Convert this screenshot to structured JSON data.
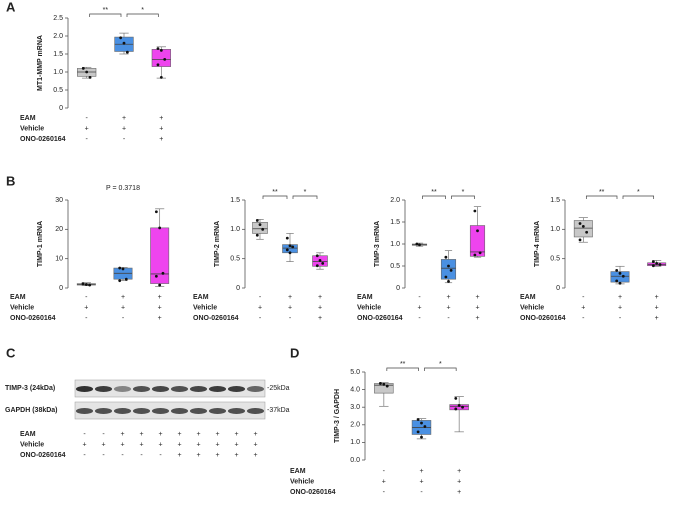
{
  "chart_data": [
    {
      "type": "box",
      "panel": "A",
      "y_label": "MT1-MMP mRNA",
      "ylim": [
        0,
        2.5
      ],
      "yticks": [
        0,
        0.5,
        {
          "value": 1,
          "label": "1.0"
        },
        1.5,
        {
          "value": 2,
          "label": "2.0"
        },
        2.5
      ],
      "brackets": [
        "**",
        "*"
      ],
      "groups": [
        {
          "color": "#c8c8c8",
          "min": 0.83,
          "q1": 0.88,
          "median": 1.0,
          "q3": 1.1,
          "max": 1.13,
          "points": [
            1.1,
            1.0,
            0.85
          ]
        },
        {
          "color": "#4a90e2",
          "min": 1.5,
          "q1": 1.57,
          "median": 1.77,
          "q3": 1.97,
          "max": 2.08,
          "points": [
            1.95,
            1.8,
            1.55
          ]
        },
        {
          "color": "#ee44ee",
          "min": 0.83,
          "q1": 1.15,
          "median": 1.35,
          "q3": 1.63,
          "max": 1.7,
          "points": [
            1.65,
            1.6,
            1.35,
            1.2,
            0.85
          ]
        }
      ],
      "conditions": [
        {
          "label": "EAM",
          "signs": [
            "-",
            "+",
            "+"
          ]
        },
        {
          "label": "Vehicle",
          "signs": [
            "+",
            "+",
            "+"
          ]
        },
        {
          "label": "ONO-0260164",
          "signs": [
            "-",
            "-",
            "+"
          ]
        }
      ]
    },
    {
      "type": "box",
      "panel": "B",
      "y_label": "TIMP-1 mRNA",
      "ylim": [
        0,
        30
      ],
      "yticks": [
        0,
        10,
        20,
        30
      ],
      "annotation": "P = 0.3718",
      "groups": [
        {
          "color": "#c8c8c8",
          "min": 0.8,
          "q1": 1.0,
          "median": 1.2,
          "q3": 1.5,
          "max": 1.8,
          "points": [
            1.5,
            1.2,
            1.0
          ]
        },
        {
          "color": "#4a90e2",
          "min": 2.5,
          "q1": 3,
          "median": 5,
          "q3": 6.8,
          "max": 7,
          "points": [
            6.8,
            6.5,
            3,
            2.5
          ]
        },
        {
          "color": "#ee44ee",
          "min": 0.5,
          "q1": 1.5,
          "median": 4.8,
          "q3": 20.5,
          "max": 27,
          "points": [
            26,
            20.5,
            5,
            4,
            1
          ]
        }
      ],
      "conditions": [
        {
          "label": "EAM",
          "signs": [
            "-",
            "+",
            "+"
          ]
        },
        {
          "label": "Vehicle",
          "signs": [
            "+",
            "+",
            "+"
          ]
        },
        {
          "label": "ONO-0260164",
          "signs": [
            "-",
            "-",
            "+"
          ]
        }
      ]
    },
    {
      "type": "box",
      "y_label": "TIMP-2 mRNA",
      "ylim": [
        0,
        1.5
      ],
      "yticks": [
        0,
        0.5,
        {
          "value": 1,
          "label": "1.0"
        },
        1.5
      ],
      "brackets": [
        "**",
        "*"
      ],
      "groups": [
        {
          "color": "#c8c8c8",
          "min": 0.83,
          "q1": 0.93,
          "median": 1.01,
          "q3": 1.12,
          "max": 1.17,
          "points": [
            1.15,
            1.08,
            1.0,
            0.9
          ]
        },
        {
          "color": "#4a90e2",
          "min": 0.45,
          "q1": 0.6,
          "median": 0.68,
          "q3": 0.74,
          "max": 0.93,
          "points": [
            0.85,
            0.72,
            0.7,
            0.65,
            0.6
          ]
        },
        {
          "color": "#ee44ee",
          "min": 0.32,
          "q1": 0.37,
          "median": 0.45,
          "q3": 0.55,
          "max": 0.6,
          "points": [
            0.55,
            0.47,
            0.42,
            0.38
          ]
        }
      ],
      "conditions": [
        {
          "label": "EAM",
          "signs": [
            "-",
            "+",
            "+"
          ]
        },
        {
          "label": "Vehicle",
          "signs": [
            "+",
            "+",
            "+"
          ]
        },
        {
          "label": "ONO-0260164",
          "signs": [
            "-",
            "-",
            "+"
          ]
        }
      ]
    },
    {
      "type": "box",
      "y_label": "TIMP-3 mRNA",
      "ylim": [
        0,
        2
      ],
      "yticks": [
        0,
        0.5,
        {
          "value": 1,
          "label": "1.0"
        },
        1.5,
        {
          "value": 2,
          "label": "2.0"
        }
      ],
      "brackets": [
        "**",
        "*"
      ],
      "groups": [
        {
          "color": "#c8c8c8",
          "min": 0.95,
          "q1": 0.97,
          "median": 0.99,
          "q3": 1.0,
          "max": 1.02,
          "points": [
            1.0,
            0.98
          ]
        },
        {
          "color": "#4a90e2",
          "min": 0.12,
          "q1": 0.2,
          "median": 0.45,
          "q3": 0.65,
          "max": 0.85,
          "points": [
            0.7,
            0.5,
            0.4,
            0.25,
            0.15
          ]
        },
        {
          "color": "#ee44ee",
          "min": 0.7,
          "q1": 0.72,
          "median": 0.82,
          "q3": 1.42,
          "max": 1.85,
          "points": [
            1.75,
            1.3,
            0.8,
            0.75
          ]
        }
      ],
      "conditions": [
        {
          "label": "EAM",
          "signs": [
            "-",
            "+",
            "+"
          ]
        },
        {
          "label": "Vehicle",
          "signs": [
            "+",
            "+",
            "+"
          ]
        },
        {
          "label": "ONO-0260164",
          "signs": [
            "-",
            "-",
            "+"
          ]
        }
      ]
    },
    {
      "type": "box",
      "y_label": "TIMP-4 mRNA",
      "ylim": [
        0,
        1.5
      ],
      "yticks": [
        0,
        0.5,
        {
          "value": 1,
          "label": "1.0"
        },
        1.5
      ],
      "brackets": [
        "**",
        "*"
      ],
      "groups": [
        {
          "color": "#c8c8c8",
          "min": 0.78,
          "q1": 0.87,
          "median": 1.02,
          "q3": 1.15,
          "max": 1.2,
          "points": [
            1.1,
            1.05,
            0.95,
            0.82
          ]
        },
        {
          "color": "#4a90e2",
          "min": 0.07,
          "q1": 0.1,
          "median": 0.2,
          "q3": 0.28,
          "max": 0.37,
          "points": [
            0.3,
            0.25,
            0.2,
            0.12,
            0.08
          ]
        },
        {
          "color": "#ee44ee",
          "min": 0.37,
          "q1": 0.38,
          "median": 0.4,
          "q3": 0.43,
          "max": 0.47,
          "points": [
            0.45,
            0.42,
            0.4,
            0.38
          ]
        }
      ],
      "conditions": [
        {
          "label": "EAM",
          "signs": [
            "-",
            "+",
            "+"
          ]
        },
        {
          "label": "Vehicle",
          "signs": [
            "+",
            "+",
            "+"
          ]
        },
        {
          "label": "ONO-0260164",
          "signs": [
            "-",
            "-",
            "+"
          ]
        }
      ]
    },
    {
      "type": "box",
      "panel": "D",
      "y_label": "TIMP-3 / GAPDH",
      "ylim": [
        0,
        5
      ],
      "yticks": [
        {
          "value": 0,
          "label": "0.0"
        },
        {
          "value": 1,
          "label": "1.0"
        },
        {
          "value": 2,
          "label": "2.0"
        },
        {
          "value": 3,
          "label": "3.0"
        },
        {
          "value": 4,
          "label": "4.0"
        },
        {
          "value": 5,
          "label": "5.0"
        }
      ],
      "brackets": [
        "**",
        "*"
      ],
      "groups": [
        {
          "color": "#c8c8c8",
          "min": 3.05,
          "q1": 3.8,
          "median": 4.25,
          "q3": 4.35,
          "max": 4.4,
          "points": [
            4.35,
            4.3,
            4.2
          ]
        },
        {
          "color": "#4a90e2",
          "min": 1.2,
          "q1": 1.45,
          "median": 1.85,
          "q3": 2.25,
          "max": 2.35,
          "points": [
            2.3,
            2.1,
            1.9,
            1.6,
            1.3
          ]
        },
        {
          "color": "#ee44ee",
          "min": 1.6,
          "q1": 2.85,
          "median": 3.05,
          "q3": 3.15,
          "max": 3.6,
          "points": [
            3.5,
            3.1,
            3.0,
            2.9
          ]
        }
      ],
      "conditions": [
        {
          "label": "EAM",
          "signs": [
            "-",
            "+",
            "+"
          ]
        },
        {
          "label": "Vehicle",
          "signs": [
            "+",
            "+",
            "+"
          ]
        },
        {
          "label": "ONO-0260164",
          "signs": [
            "-",
            "-",
            "+"
          ]
        }
      ]
    }
  ],
  "blot": {
    "panel": "C",
    "bands": [
      {
        "label": "TIMP-3 (24kDa)",
        "marker": "-25kDa"
      },
      {
        "label": "GAPDH (38kDa)",
        "marker": "-37kDa"
      }
    ],
    "conditions": [
      {
        "label": "EAM",
        "signs": [
          "-",
          "-",
          "+",
          "+",
          "+",
          "+",
          "+",
          "+",
          "+",
          "+"
        ]
      },
      {
        "label": "Vehicle",
        "signs": [
          "+",
          "+",
          "+",
          "+",
          "+",
          "+",
          "+",
          "+",
          "+",
          "+"
        ]
      },
      {
        "label": "ONO-0260164",
        "signs": [
          "-",
          "-",
          "-",
          "-",
          "-",
          "+",
          "+",
          "+",
          "+",
          "+"
        ]
      }
    ]
  }
}
